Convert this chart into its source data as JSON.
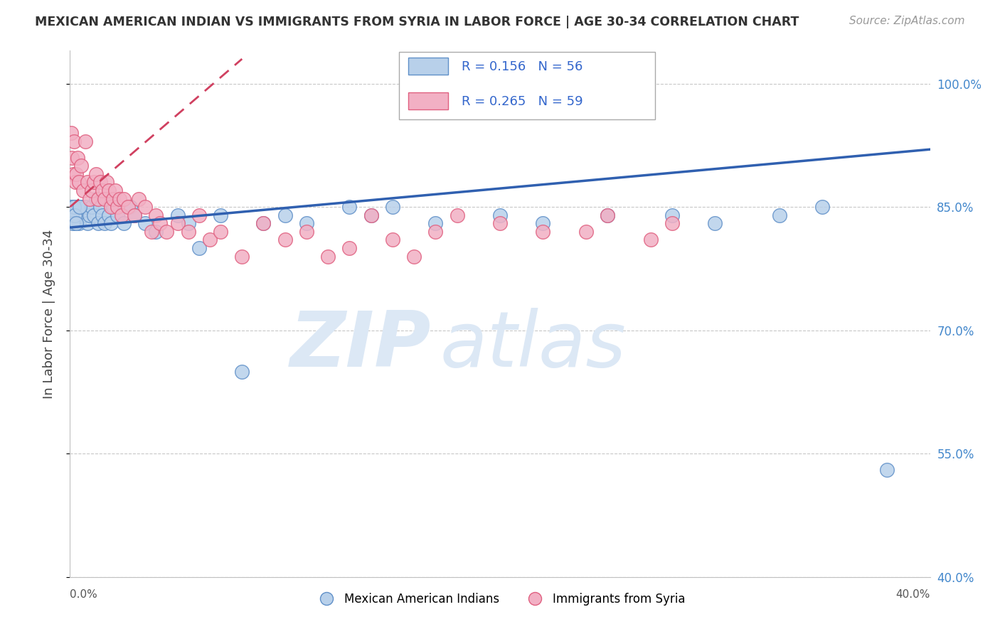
{
  "title": "MEXICAN AMERICAN INDIAN VS IMMIGRANTS FROM SYRIA IN LABOR FORCE | AGE 30-34 CORRELATION CHART",
  "source": "Source: ZipAtlas.com",
  "ylabel": "In Labor Force | Age 30-34",
  "y_ticks": [
    40.0,
    55.0,
    70.0,
    85.0,
    100.0
  ],
  "y_tick_labels": [
    "40.0%",
    "55.0%",
    "70.0%",
    "85.0%",
    "100.0%"
  ],
  "x_range": [
    0.0,
    40.0
  ],
  "y_range": [
    40.0,
    104.0
  ],
  "blue_R": 0.156,
  "blue_N": 56,
  "pink_R": 0.265,
  "pink_N": 59,
  "blue_color": "#b8d0ea",
  "pink_color": "#f2b0c4",
  "blue_edge_color": "#6090c8",
  "pink_edge_color": "#e06080",
  "blue_line_color": "#3060b0",
  "pink_line_color": "#d04060",
  "watermark_zip": "ZIP",
  "watermark_atlas": "atlas",
  "watermark_color": "#dce8f5",
  "legend_label_blue": "Mexican American Indians",
  "legend_label_pink": "Immigrants from Syria",
  "blue_x": [
    0.1,
    0.15,
    0.2,
    0.25,
    0.3,
    0.35,
    0.4,
    0.5,
    0.6,
    0.7,
    0.8,
    0.9,
    1.0,
    1.1,
    1.2,
    1.3,
    1.4,
    1.5,
    1.6,
    1.7,
    1.8,
    1.9,
    2.0,
    2.2,
    2.5,
    2.8,
    3.0,
    3.5,
    4.0,
    5.0,
    5.5,
    6.0,
    7.0,
    8.0,
    9.0,
    10.0,
    11.0,
    13.0,
    14.0,
    15.0,
    17.0,
    20.0,
    22.0,
    25.0,
    28.0,
    30.0,
    33.0,
    35.0,
    38.0,
    0.05,
    0.08,
    0.12,
    0.18,
    0.22,
    0.28,
    0.45
  ],
  "blue_y": [
    84,
    85,
    83,
    84,
    85,
    84,
    83,
    85,
    84,
    85,
    83,
    84,
    85,
    84,
    86,
    83,
    85,
    84,
    83,
    86,
    84,
    83,
    85,
    84,
    83,
    85,
    84,
    83,
    82,
    84,
    83,
    80,
    84,
    65,
    83,
    84,
    83,
    85,
    84,
    85,
    83,
    84,
    83,
    84,
    84,
    83,
    84,
    85,
    53,
    85,
    84,
    83,
    85,
    84,
    83,
    85
  ],
  "pink_x": [
    0.05,
    0.1,
    0.15,
    0.2,
    0.25,
    0.3,
    0.35,
    0.4,
    0.5,
    0.6,
    0.7,
    0.8,
    0.9,
    1.0,
    1.1,
    1.2,
    1.3,
    1.4,
    1.5,
    1.6,
    1.7,
    1.8,
    1.9,
    2.0,
    2.1,
    2.2,
    2.3,
    2.4,
    2.5,
    2.7,
    3.0,
    3.2,
    3.5,
    3.8,
    4.0,
    4.2,
    4.5,
    5.0,
    5.5,
    6.0,
    6.5,
    7.0,
    8.0,
    9.0,
    10.0,
    11.0,
    12.0,
    13.0,
    14.0,
    15.0,
    16.0,
    17.0,
    18.0,
    20.0,
    22.0,
    24.0,
    25.0,
    27.0,
    28.0
  ],
  "pink_y": [
    94,
    91,
    89,
    93,
    88,
    89,
    91,
    88,
    90,
    87,
    93,
    88,
    86,
    87,
    88,
    89,
    86,
    88,
    87,
    86,
    88,
    87,
    85,
    86,
    87,
    85,
    86,
    84,
    86,
    85,
    84,
    86,
    85,
    82,
    84,
    83,
    82,
    83,
    82,
    84,
    81,
    82,
    79,
    83,
    81,
    82,
    79,
    80,
    84,
    81,
    79,
    82,
    84,
    83,
    82,
    82,
    84,
    81,
    83
  ],
  "blue_trend_x0": 0.0,
  "blue_trend_y0": 82.5,
  "blue_trend_x1": 40.0,
  "blue_trend_y1": 92.0,
  "pink_trend_x0": 0.0,
  "pink_trend_y0": 85.0,
  "pink_trend_x1": 8.0,
  "pink_trend_y1": 103.0
}
